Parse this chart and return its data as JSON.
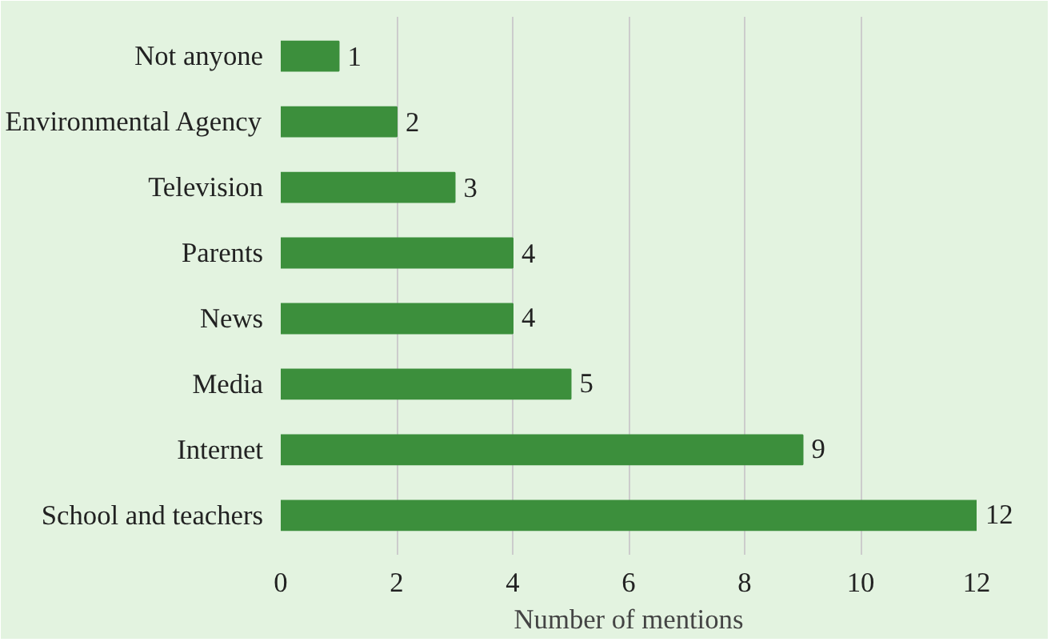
{
  "chart_data": {
    "type": "bar",
    "orientation": "horizontal",
    "xlabel": "Number of mentions",
    "categories": [
      "Not anyone",
      "Environmental Agency",
      "Television",
      "Parents",
      "News",
      "Media",
      "Internet",
      "School and teachers"
    ],
    "values": [
      1,
      2,
      3,
      4,
      4,
      5,
      9,
      12
    ],
    "color": "#3c8f3c",
    "xlim": [
      0,
      12
    ],
    "xticks": [
      0,
      2,
      4,
      6,
      8,
      10,
      12
    ],
    "grid": "x",
    "data_labels": true
  }
}
